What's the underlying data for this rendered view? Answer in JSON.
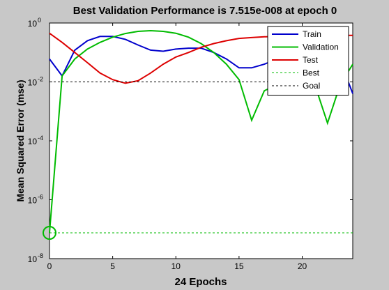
{
  "chart_data": {
    "type": "line",
    "title": "Best Validation Performance is 7.515e-008 at epoch 0",
    "xlabel": "24 Epochs",
    "ylabel": "Mean Squared Error  (mse)",
    "xlim": [
      0,
      24
    ],
    "ylim": [
      1e-08,
      1
    ],
    "yscale": "log",
    "grid": false,
    "legend_position": "top-right",
    "x_ticks": [
      0,
      5,
      10,
      15,
      20
    ],
    "y_ticks": [
      {
        "value": 1,
        "base": "10",
        "exp": "0"
      },
      {
        "value": 0.01,
        "base": "10",
        "exp": "-2"
      },
      {
        "value": 0.0001,
        "base": "10",
        "exp": "-4"
      },
      {
        "value": 1e-06,
        "base": "10",
        "exp": "-6"
      },
      {
        "value": 1e-08,
        "base": "10",
        "exp": "-8"
      }
    ],
    "series": [
      {
        "name": "Train",
        "color": "#0000cc",
        "style": "solid",
        "x": [
          0,
          1,
          2,
          3,
          4,
          5,
          6,
          7,
          8,
          9,
          10,
          11,
          12,
          13,
          14,
          15,
          16,
          17,
          18,
          19,
          20,
          21,
          22,
          23,
          24
        ],
        "y": [
          0.06,
          0.016,
          0.12,
          0.25,
          0.35,
          0.35,
          0.28,
          0.18,
          0.12,
          0.11,
          0.13,
          0.14,
          0.14,
          0.1,
          0.06,
          0.03,
          0.03,
          0.04,
          0.06,
          0.07,
          0.07,
          0.06,
          0.055,
          0.055,
          0.004
        ]
      },
      {
        "name": "Validation",
        "color": "#00bb00",
        "style": "solid",
        "x": [
          0,
          1,
          2,
          3,
          4,
          5,
          6,
          7,
          8,
          9,
          10,
          11,
          12,
          13,
          14,
          15,
          16,
          17,
          18,
          19,
          20,
          21,
          22,
          23,
          24
        ],
        "y": [
          7.515e-08,
          0.016,
          0.06,
          0.13,
          0.22,
          0.33,
          0.44,
          0.52,
          0.55,
          0.52,
          0.45,
          0.33,
          0.2,
          0.1,
          0.04,
          0.012,
          0.0005,
          0.005,
          0.008,
          0.012,
          0.015,
          0.008,
          0.0004,
          0.008,
          0.04
        ]
      },
      {
        "name": "Test",
        "color": "#dd0000",
        "style": "solid",
        "x": [
          0,
          1,
          2,
          3,
          4,
          5,
          6,
          7,
          8,
          9,
          10,
          11,
          12,
          13,
          14,
          15,
          16,
          17,
          18,
          19,
          20,
          21,
          22,
          23,
          24
        ],
        "y": [
          0.45,
          0.22,
          0.1,
          0.045,
          0.02,
          0.012,
          0.009,
          0.011,
          0.02,
          0.04,
          0.07,
          0.1,
          0.15,
          0.2,
          0.25,
          0.3,
          0.32,
          0.34,
          0.35,
          0.36,
          0.36,
          0.37,
          0.37,
          0.38,
          0.38
        ]
      },
      {
        "name": "Best",
        "color": "#00bb00",
        "style": "dotted",
        "x": [
          0,
          24
        ],
        "y": [
          7.515e-08,
          7.515e-08
        ]
      },
      {
        "name": "Goal",
        "color": "#000000",
        "style": "dotted",
        "x": [
          0,
          24
        ],
        "y": [
          0.01,
          0.01
        ]
      }
    ],
    "best_marker": {
      "x": 0,
      "y": 7.515e-08,
      "color": "#00bb00"
    }
  }
}
